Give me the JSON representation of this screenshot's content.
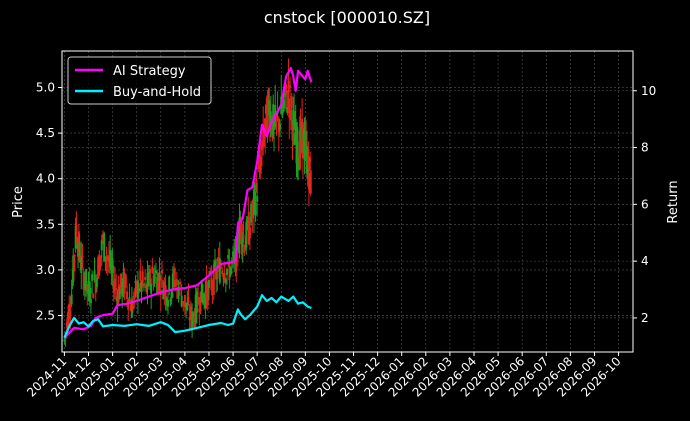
{
  "chart_data": {
    "type": "line",
    "title": "cnstock [000010.SZ]",
    "ylabel_left": "Price",
    "ylabel_right": "Return",
    "x_ticks": [
      "2024-11",
      "2024-12",
      "2025-01",
      "2025-02",
      "2025-03",
      "2025-04",
      "2025-05",
      "2025-06",
      "2025-07",
      "2025-08",
      "2025-09",
      "2025-10",
      "2025-11",
      "2025-12",
      "2026-01",
      "2026-02",
      "2026-03",
      "2026-04",
      "2026-05",
      "2026-06",
      "2026-07",
      "2026-08",
      "2026-09",
      "2026-10"
    ],
    "x_range": [
      "2024-11",
      "2026-10"
    ],
    "y_left": {
      "range": [
        2.1,
        5.4
      ],
      "ticks": [
        "2.5",
        "3.0",
        "3.5",
        "4.0",
        "4.5",
        "5.0"
      ],
      "tick_values": [
        2.5,
        3.0,
        3.5,
        4.0,
        4.5,
        5.0
      ]
    },
    "y_right": {
      "range": [
        0.8,
        11.4
      ],
      "ticks": [
        "2",
        "4",
        "6",
        "8",
        "10"
      ],
      "tick_values": [
        2,
        4,
        6,
        8,
        10
      ]
    },
    "grid": true,
    "legend_position": "top-left",
    "candles": {
      "up_color": "#1f9e1f",
      "down_color": "#e0251b",
      "points": [
        {
          "month": 0.0,
          "price": 2.22
        },
        {
          "month": 0.3,
          "price": 2.75
        },
        {
          "month": 0.5,
          "price": 3.45
        },
        {
          "month": 0.7,
          "price": 3.05
        },
        {
          "month": 1.0,
          "price": 2.75
        },
        {
          "month": 1.3,
          "price": 2.9
        },
        {
          "month": 1.6,
          "price": 3.3
        },
        {
          "month": 1.9,
          "price": 3.05
        },
        {
          "month": 2.2,
          "price": 2.75
        },
        {
          "month": 2.5,
          "price": 2.85
        },
        {
          "month": 2.8,
          "price": 2.6
        },
        {
          "month": 3.1,
          "price": 2.85
        },
        {
          "month": 3.4,
          "price": 2.8
        },
        {
          "month": 3.7,
          "price": 2.95
        },
        {
          "month": 4.0,
          "price": 2.9
        },
        {
          "month": 4.3,
          "price": 2.75
        },
        {
          "month": 4.6,
          "price": 2.9
        },
        {
          "month": 5.0,
          "price": 2.65
        },
        {
          "month": 5.3,
          "price": 2.45
        },
        {
          "month": 5.6,
          "price": 2.7
        },
        {
          "month": 5.9,
          "price": 2.75
        },
        {
          "month": 6.2,
          "price": 2.9
        },
        {
          "month": 6.5,
          "price": 3.05
        },
        {
          "month": 6.8,
          "price": 3.0
        },
        {
          "month": 7.1,
          "price": 3.1
        },
        {
          "month": 7.3,
          "price": 3.5
        },
        {
          "month": 7.5,
          "price": 3.3
        },
        {
          "month": 7.8,
          "price": 3.6
        },
        {
          "month": 8.0,
          "price": 3.9
        },
        {
          "month": 8.3,
          "price": 4.5
        },
        {
          "month": 8.5,
          "price": 4.8
        },
        {
          "month": 8.7,
          "price": 4.55
        },
        {
          "month": 9.0,
          "price": 4.7
        },
        {
          "month": 9.3,
          "price": 4.95
        },
        {
          "month": 9.5,
          "price": 4.6
        },
        {
          "month": 9.7,
          "price": 4.3
        },
        {
          "month": 9.9,
          "price": 4.45
        },
        {
          "month": 10.1,
          "price": 4.2
        },
        {
          "month": 10.25,
          "price": 3.9
        }
      ]
    },
    "series": [
      {
        "name": "AI Strategy",
        "color": "#ff00ff",
        "axis": "right",
        "points": [
          [
            0.0,
            1.3
          ],
          [
            0.4,
            1.65
          ],
          [
            0.8,
            1.6
          ],
          [
            1.1,
            1.72
          ],
          [
            1.3,
            2.0
          ],
          [
            1.6,
            2.1
          ],
          [
            2.0,
            2.15
          ],
          [
            2.2,
            2.45
          ],
          [
            2.6,
            2.5
          ],
          [
            3.0,
            2.6
          ],
          [
            3.5,
            2.75
          ],
          [
            4.0,
            2.9
          ],
          [
            4.5,
            3.0
          ],
          [
            5.0,
            3.05
          ],
          [
            5.5,
            3.15
          ],
          [
            6.0,
            3.5
          ],
          [
            6.5,
            3.9
          ],
          [
            6.9,
            3.95
          ],
          [
            7.1,
            4.0
          ],
          [
            7.2,
            5.3
          ],
          [
            7.4,
            5.5
          ],
          [
            7.6,
            6.5
          ],
          [
            7.8,
            6.6
          ],
          [
            8.0,
            7.5
          ],
          [
            8.2,
            8.8
          ],
          [
            8.4,
            8.4
          ],
          [
            8.6,
            8.9
          ],
          [
            8.8,
            9.2
          ],
          [
            9.0,
            9.5
          ],
          [
            9.2,
            10.5
          ],
          [
            9.4,
            10.8
          ],
          [
            9.5,
            10.5
          ],
          [
            9.6,
            10.0
          ],
          [
            9.7,
            10.7
          ],
          [
            9.8,
            10.6
          ],
          [
            10.0,
            10.4
          ],
          [
            10.1,
            10.7
          ],
          [
            10.25,
            10.3
          ]
        ]
      },
      {
        "name": "Buy-and-Hold",
        "color": "#00f0ff",
        "axis": "right",
        "points": [
          [
            0.0,
            1.3
          ],
          [
            0.2,
            1.7
          ],
          [
            0.4,
            2.0
          ],
          [
            0.6,
            1.8
          ],
          [
            0.8,
            1.85
          ],
          [
            1.0,
            1.7
          ],
          [
            1.2,
            1.9
          ],
          [
            1.4,
            1.95
          ],
          [
            1.6,
            1.7
          ],
          [
            2.0,
            1.75
          ],
          [
            2.5,
            1.72
          ],
          [
            3.0,
            1.78
          ],
          [
            3.5,
            1.72
          ],
          [
            4.0,
            1.85
          ],
          [
            4.3,
            1.75
          ],
          [
            4.6,
            1.5
          ],
          [
            5.0,
            1.55
          ],
          [
            5.5,
            1.65
          ],
          [
            6.0,
            1.75
          ],
          [
            6.5,
            1.82
          ],
          [
            6.8,
            1.75
          ],
          [
            7.0,
            1.8
          ],
          [
            7.2,
            2.3
          ],
          [
            7.3,
            2.15
          ],
          [
            7.5,
            1.95
          ],
          [
            7.7,
            2.1
          ],
          [
            8.0,
            2.4
          ],
          [
            8.2,
            2.8
          ],
          [
            8.4,
            2.6
          ],
          [
            8.6,
            2.7
          ],
          [
            8.8,
            2.55
          ],
          [
            9.0,
            2.75
          ],
          [
            9.3,
            2.6
          ],
          [
            9.5,
            2.75
          ],
          [
            9.7,
            2.5
          ],
          [
            9.9,
            2.55
          ],
          [
            10.1,
            2.4
          ],
          [
            10.25,
            2.35
          ]
        ]
      }
    ]
  }
}
